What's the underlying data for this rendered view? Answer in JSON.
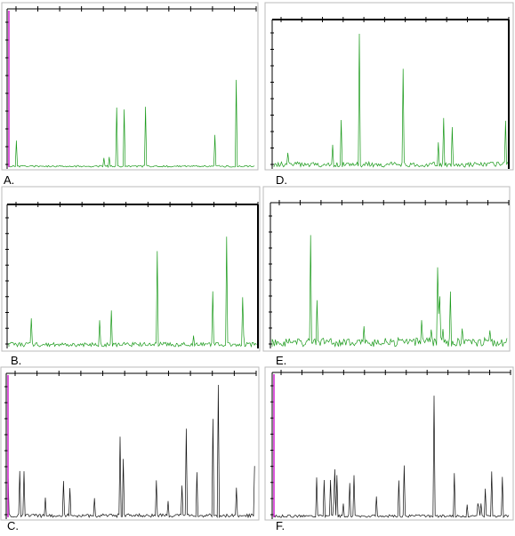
{
  "panels": [
    {
      "label": "A."
    },
    {
      "label": "D."
    },
    {
      "label": "B."
    },
    {
      "label": "E."
    },
    {
      "label": "C."
    },
    {
      "label": "F."
    }
  ]
}
